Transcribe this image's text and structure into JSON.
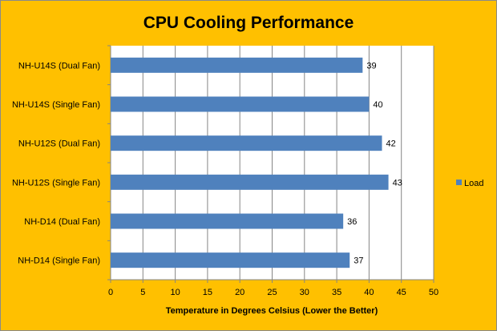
{
  "chart_data": {
    "type": "bar",
    "orientation": "horizontal",
    "title": "CPU Cooling Performance",
    "xlabel": "Temperature in Degrees Celsius (Lower the Better)",
    "ylabel": "",
    "categories": [
      "NH-U14S (Dual Fan)",
      "NH-U14S (Single Fan)",
      "NH-U12S (Dual Fan)",
      "NH-U12S (Single Fan)",
      "NH-D14 (Dual Fan)",
      "NH-D14 (Single Fan)"
    ],
    "series": [
      {
        "name": "Load",
        "values": [
          39,
          40,
          42,
          43,
          36,
          37
        ],
        "color": "#4f81bd"
      }
    ],
    "xlim": [
      0,
      50
    ],
    "xticks": [
      0,
      5,
      10,
      15,
      20,
      25,
      30,
      35,
      40,
      45,
      50
    ],
    "grid": "vertical",
    "legend_position": "right",
    "data_labels": true,
    "background_color": "#ffc000",
    "plot_background_color": "#ffffff"
  }
}
